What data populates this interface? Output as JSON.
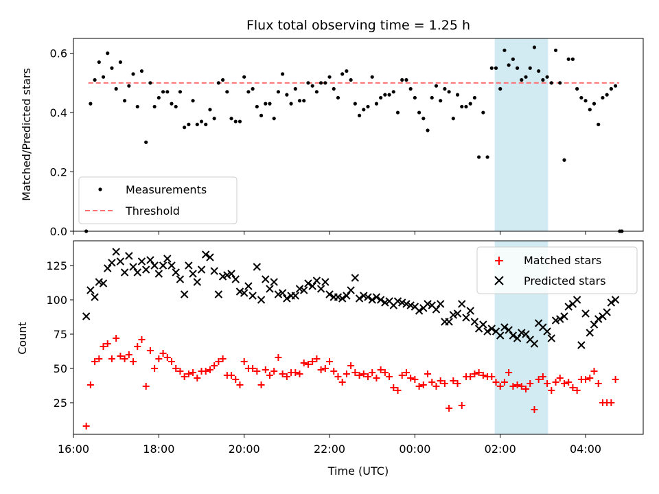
{
  "chart_data": {
    "type": "scatter",
    "title": "Flux total observing time = 1.25 h",
    "xlabel": "Time (UTC)",
    "x_ticks": [
      "16:00",
      "18:00",
      "20:00",
      "22:00",
      "00:00",
      "02:00",
      "04:00"
    ],
    "x_tick_hours": [
      16,
      18,
      20,
      22,
      24,
      26,
      28
    ],
    "xlim_hours": [
      16.0,
      29.35
    ],
    "shaded_span_hours": [
      25.87,
      27.12
    ],
    "shade_color": "#add8e6",
    "top_panel": {
      "ylabel": "Matched/Predicted stars",
      "ylim": [
        0,
        0.65
      ],
      "y_ticks": [
        "0.0",
        "0.2",
        "0.4",
        "0.6"
      ],
      "y_tick_values": [
        0.0,
        0.2,
        0.4,
        0.6
      ],
      "threshold": {
        "value": 0.5,
        "x_range": [
          16.35,
          29.4
        ],
        "color": "#ff7070"
      },
      "legend": {
        "position": "lower-left",
        "entries": [
          "Measurements",
          "Threshold"
        ]
      },
      "series": [
        {
          "name": "Measurements",
          "color": "#000000",
          "x": [
            16.3,
            16.4,
            16.5,
            16.6,
            16.7,
            16.8,
            16.9,
            17.0,
            17.1,
            17.2,
            17.3,
            17.4,
            17.5,
            17.6,
            17.7,
            17.8,
            17.9,
            18.0,
            18.1,
            18.2,
            18.3,
            18.4,
            18.5,
            18.6,
            18.7,
            18.8,
            18.9,
            19.0,
            19.1,
            19.2,
            19.3,
            19.4,
            19.5,
            19.6,
            19.7,
            19.8,
            19.9,
            20.0,
            20.1,
            20.2,
            20.3,
            20.4,
            20.5,
            20.6,
            20.7,
            20.8,
            20.9,
            21.0,
            21.1,
            21.2,
            21.3,
            21.4,
            21.5,
            21.6,
            21.7,
            21.8,
            21.9,
            22.0,
            22.1,
            22.2,
            22.3,
            22.4,
            22.5,
            22.6,
            22.7,
            22.8,
            22.9,
            23.0,
            23.1,
            23.2,
            23.3,
            23.4,
            23.5,
            23.6,
            23.7,
            23.8,
            23.9,
            24.0,
            24.1,
            24.2,
            24.3,
            24.4,
            24.5,
            24.6,
            24.7,
            24.8,
            24.9,
            25.0,
            25.1,
            25.2,
            25.3,
            25.4,
            25.5,
            25.6,
            25.7,
            25.8,
            25.9,
            26.0,
            26.1,
            26.2,
            26.3,
            26.4,
            26.5,
            26.6,
            26.7,
            26.8,
            26.9,
            27.0,
            27.1,
            27.2,
            27.3,
            27.4,
            27.5,
            27.6,
            27.7,
            27.8,
            27.9,
            28.0,
            28.1,
            28.2,
            28.3,
            28.4,
            28.5,
            28.6,
            28.7
          ],
          "y": [
            0.0,
            0.43,
            0.51,
            0.57,
            0.52,
            0.6,
            0.55,
            0.48,
            0.57,
            0.44,
            0.49,
            0.53,
            0.42,
            0.54,
            0.3,
            0.5,
            0.42,
            0.45,
            0.47,
            0.47,
            0.43,
            0.42,
            0.47,
            0.35,
            0.36,
            0.44,
            0.36,
            0.37,
            0.36,
            0.41,
            0.38,
            0.5,
            0.51,
            0.47,
            0.38,
            0.37,
            0.37,
            0.52,
            0.47,
            0.48,
            0.42,
            0.39,
            0.43,
            0.43,
            0.38,
            0.47,
            0.53,
            0.46,
            0.43,
            0.48,
            0.44,
            0.44,
            0.5,
            0.49,
            0.47,
            0.5,
            0.5,
            0.52,
            0.48,
            0.45,
            0.53,
            0.54,
            0.51,
            0.43,
            0.39,
            0.41,
            0.42,
            0.52,
            0.43,
            0.45,
            0.46,
            0.46,
            0.47,
            0.4,
            0.51,
            0.51,
            0.48,
            0.45,
            0.4,
            0.38,
            0.34,
            0.45,
            0.49,
            0.44,
            0.48,
            0.47,
            0.38,
            0.46,
            0.42,
            0.42,
            0.43,
            0.45,
            0.25,
            0.4,
            0.25,
            0.55,
            0.55,
            0.48,
            0.61,
            0.56,
            0.58,
            0.55,
            0.51,
            0.52,
            0.55,
            0.62,
            0.54,
            0.51,
            0.52,
            0.5,
            0.61,
            0.5,
            0.24,
            0.58,
            0.58,
            0.48,
            0.45,
            0.44,
            0.41,
            0.43,
            0.36,
            0.45,
            0.46,
            0.48,
            0.49
          ]
        }
      ]
    },
    "bottom_panel": {
      "ylabel": "Count",
      "ylim": [
        2,
        143
      ],
      "y_ticks": [
        "25",
        "50",
        "75",
        "100",
        "125"
      ],
      "y_tick_values": [
        25,
        50,
        75,
        100,
        125
      ],
      "legend": {
        "position": "upper-right",
        "entries": [
          "Matched stars",
          "Predicted stars"
        ]
      },
      "series": [
        {
          "name": "Matched stars",
          "marker": "plus",
          "color": "#ff0000",
          "x": [
            16.3,
            16.4,
            16.5,
            16.6,
            16.7,
            16.8,
            16.9,
            17.0,
            17.1,
            17.2,
            17.3,
            17.4,
            17.5,
            17.6,
            17.7,
            17.8,
            17.9,
            18.0,
            18.1,
            18.2,
            18.3,
            18.4,
            18.5,
            18.6,
            18.7,
            18.8,
            18.9,
            19.0,
            19.1,
            19.2,
            19.3,
            19.4,
            19.5,
            19.6,
            19.7,
            19.8,
            19.9,
            20.0,
            20.1,
            20.2,
            20.3,
            20.4,
            20.5,
            20.6,
            20.7,
            20.8,
            20.9,
            21.0,
            21.1,
            21.2,
            21.3,
            21.4,
            21.5,
            21.6,
            21.7,
            21.8,
            21.9,
            22.0,
            22.1,
            22.2,
            22.3,
            22.4,
            22.5,
            22.6,
            22.7,
            22.8,
            22.9,
            23.0,
            23.1,
            23.2,
            23.3,
            23.4,
            23.5,
            23.6,
            23.7,
            23.8,
            23.9,
            24.0,
            24.1,
            24.2,
            24.3,
            24.4,
            24.5,
            24.6,
            24.7,
            24.8,
            24.9,
            25.0,
            25.1,
            25.2,
            25.3,
            25.4,
            25.5,
            25.6,
            25.7,
            25.8,
            25.9,
            26.0,
            26.1,
            26.2,
            26.3,
            26.4,
            26.5,
            26.6,
            26.7,
            26.8,
            26.9,
            27.0,
            27.1,
            27.2,
            27.3,
            27.4,
            27.5,
            27.6,
            27.7,
            27.8,
            27.9,
            28.0,
            28.1,
            28.2,
            28.3,
            28.4,
            28.5,
            28.6,
            28.7
          ],
          "y": [
            8,
            38,
            55,
            57,
            66,
            68,
            57,
            72,
            59,
            57,
            60,
            55,
            66,
            71,
            37,
            63,
            50,
            57,
            61,
            58,
            55,
            50,
            48,
            44,
            46,
            47,
            43,
            48,
            48,
            49,
            52,
            55,
            57,
            45,
            45,
            42,
            38,
            55,
            50,
            50,
            48,
            38,
            49,
            45,
            48,
            58,
            46,
            44,
            47,
            47,
            46,
            54,
            53,
            55,
            57,
            49,
            50,
            55,
            48,
            44,
            40,
            46,
            52,
            47,
            45,
            46,
            44,
            47,
            43,
            49,
            47,
            44,
            36,
            34,
            45,
            47,
            43,
            42,
            37,
            38,
            46,
            40,
            37,
            41,
            39,
            21,
            41,
            39,
            23,
            44,
            44,
            46,
            47,
            45,
            44,
            44,
            40,
            37,
            40,
            47,
            37,
            38,
            37,
            35,
            39,
            20,
            42,
            44,
            39,
            34,
            40,
            43,
            39,
            40,
            36,
            34,
            42,
            42,
            43,
            48,
            39,
            25,
            25,
            25,
            42
          ],
          "x_extra": [],
          "y_extra": []
        },
        {
          "name": "Predicted stars",
          "marker": "x",
          "color": "#000000",
          "x": [
            16.3,
            16.4,
            16.5,
            16.6,
            16.7,
            16.8,
            16.9,
            17.0,
            17.1,
            17.2,
            17.3,
            17.4,
            17.5,
            17.6,
            17.7,
            17.8,
            17.9,
            18.0,
            18.1,
            18.2,
            18.3,
            18.4,
            18.5,
            18.6,
            18.7,
            18.8,
            18.9,
            19.0,
            19.1,
            19.2,
            19.3,
            19.4,
            19.5,
            19.6,
            19.7,
            19.8,
            19.9,
            20.0,
            20.1,
            20.2,
            20.3,
            20.4,
            20.5,
            20.6,
            20.7,
            20.8,
            20.9,
            21.0,
            21.1,
            21.2,
            21.3,
            21.4,
            21.5,
            21.6,
            21.7,
            21.8,
            21.9,
            22.0,
            22.1,
            22.2,
            22.3,
            22.4,
            22.5,
            22.6,
            22.7,
            22.8,
            22.9,
            23.0,
            23.1,
            23.2,
            23.3,
            23.4,
            23.5,
            23.6,
            23.7,
            23.8,
            23.9,
            24.0,
            24.1,
            24.2,
            24.3,
            24.4,
            24.5,
            24.6,
            24.7,
            24.8,
            24.9,
            25.0,
            25.1,
            25.2,
            25.3,
            25.4,
            25.5,
            25.6,
            25.7,
            25.8,
            25.9,
            26.0,
            26.1,
            26.2,
            26.3,
            26.4,
            26.5,
            26.6,
            26.7,
            26.8,
            26.9,
            27.0,
            27.1,
            27.2,
            27.3,
            27.4,
            27.5,
            27.6,
            27.7,
            27.8,
            27.9,
            28.0,
            28.1,
            28.2,
            28.3,
            28.4,
            28.5,
            28.6,
            28.7
          ],
          "y": [
            88,
            107,
            102,
            113,
            112,
            123,
            127,
            135,
            128,
            120,
            132,
            124,
            120,
            128,
            122,
            129,
            125,
            119,
            125,
            130,
            125,
            120,
            115,
            104,
            125,
            119,
            113,
            122,
            133,
            131,
            121,
            104,
            117,
            118,
            119,
            115,
            106,
            105,
            110,
            103,
            124,
            100,
            115,
            108,
            113,
            104,
            105,
            101,
            103,
            103,
            108,
            107,
            112,
            110,
            114,
            108,
            113,
            104,
            102,
            102,
            101,
            103,
            107,
            116,
            101,
            103,
            102,
            100,
            102,
            100,
            98,
            99,
            96,
            99,
            98,
            97,
            96,
            95,
            92,
            94,
            97,
            96,
            93,
            97,
            84,
            84,
            89,
            90,
            97,
            87,
            92,
            84,
            79,
            82,
            77,
            79,
            77,
            74,
            80,
            78,
            74,
            72,
            76,
            75,
            71,
            68,
            83,
            80,
            77,
            72,
            85,
            86,
            88,
            95,
            97,
            100,
            67,
            90,
            76,
            82,
            86,
            88,
            91,
            98,
            100
          ],
          "x_extra": [],
          "y_extra": []
        }
      ]
    }
  }
}
